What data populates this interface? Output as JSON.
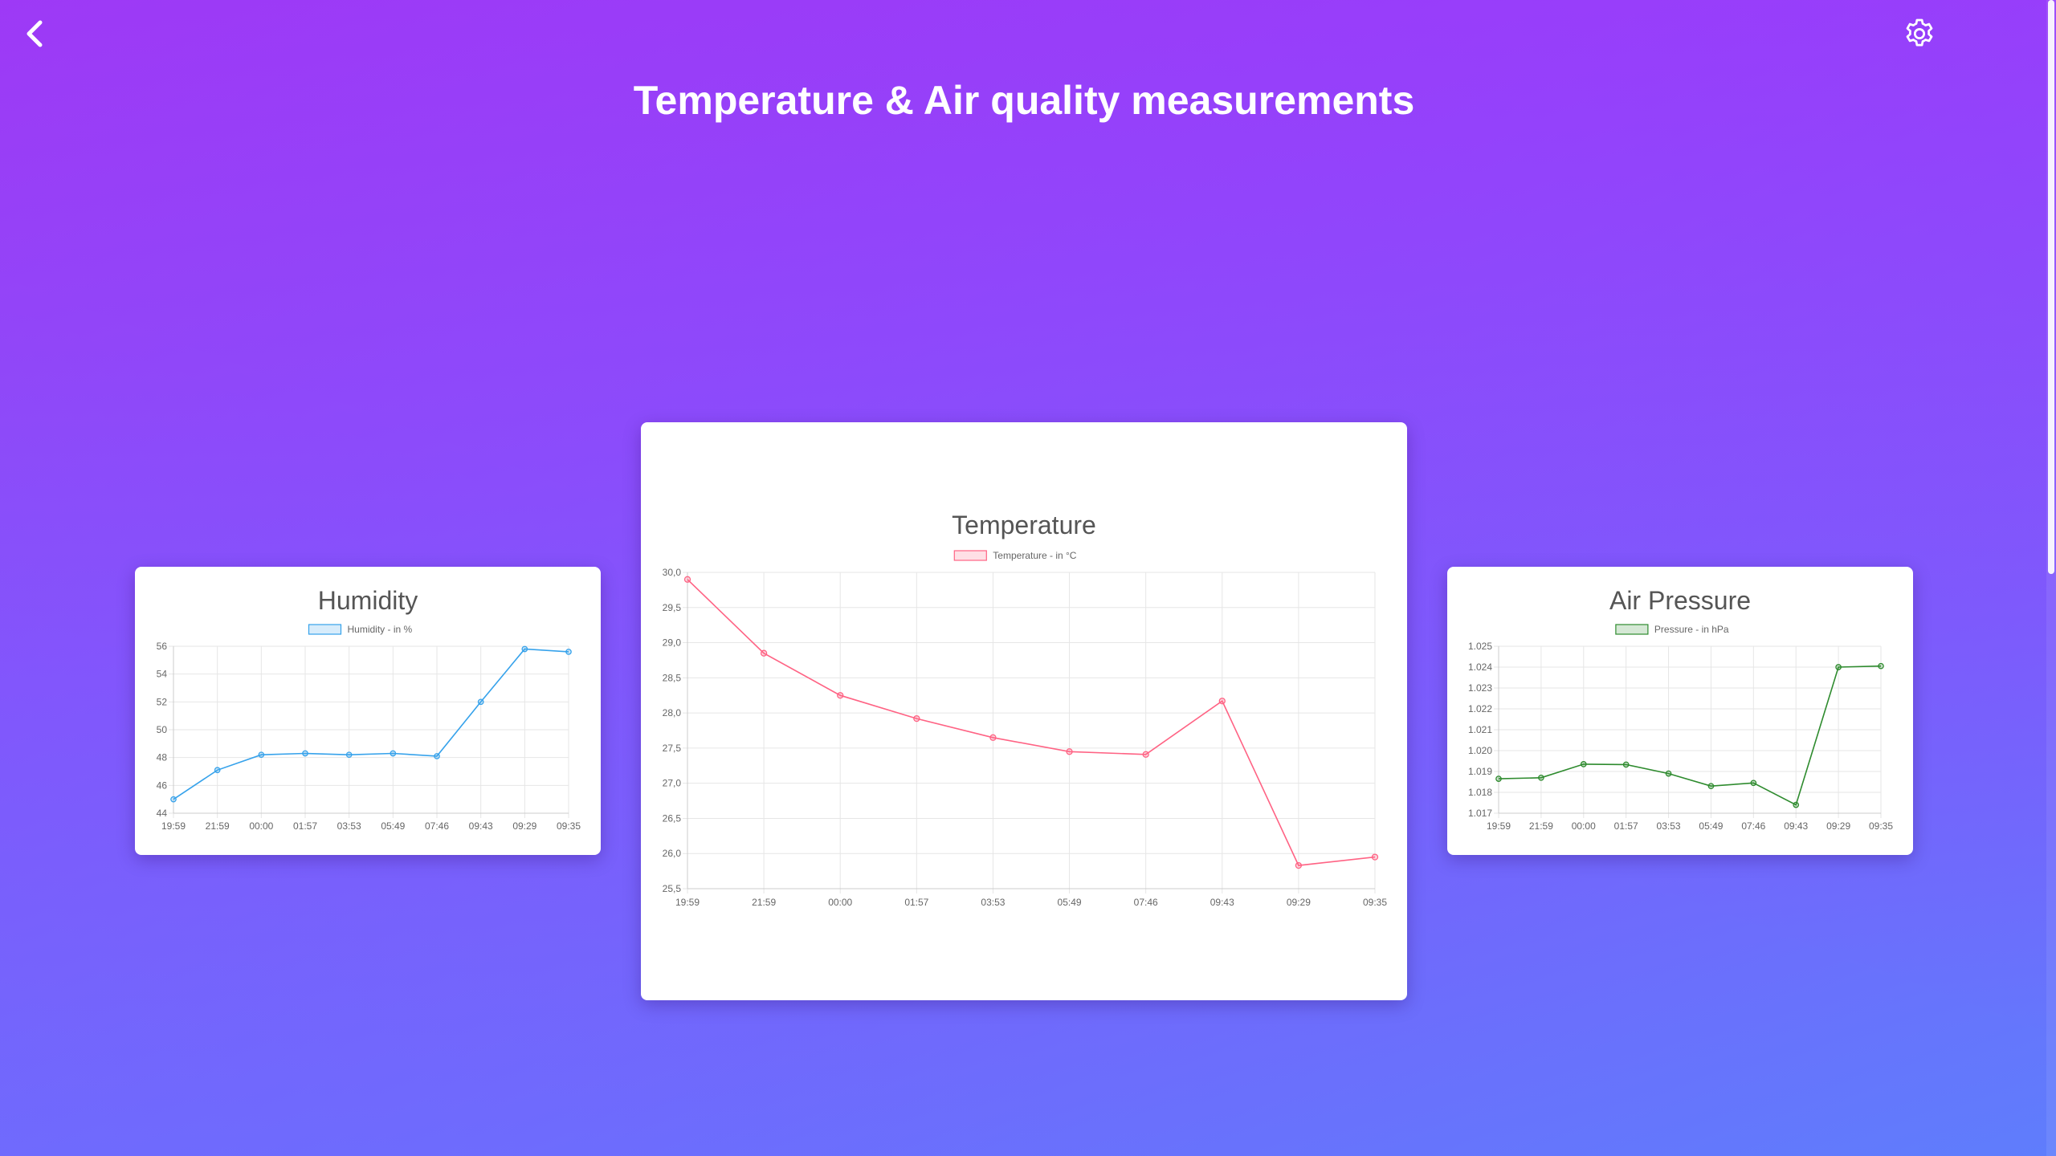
{
  "header": {
    "title": "Temperature & Air quality measurements",
    "back_icon": "chevron-left-icon",
    "settings_icon": "gear-icon"
  },
  "colors": {
    "humidity": "#36a2eb",
    "temperature": "#ff6384",
    "pressure": "#2e8b2e"
  },
  "chart_data": [
    {
      "id": "humidity",
      "type": "line",
      "title": "Humidity",
      "legend": "Humidity - in %",
      "legend_position": "top",
      "grid": true,
      "categories": [
        "19:59",
        "21:59",
        "00:00",
        "01:57",
        "03:53",
        "05:49",
        "07:46",
        "09:43",
        "09:29",
        "09:35"
      ],
      "series": [
        {
          "name": "Humidity - in %",
          "values": [
            45.0,
            47.1,
            48.2,
            48.3,
            48.2,
            48.3,
            48.1,
            52.0,
            55.8,
            55.6
          ]
        }
      ],
      "yticks": [
        "44",
        "46",
        "48",
        "50",
        "52",
        "54",
        "56"
      ],
      "ylim": [
        44,
        56
      ]
    },
    {
      "id": "temperature",
      "type": "line",
      "title": "Temperature",
      "legend": "Temperature - in °C",
      "legend_position": "top",
      "grid": true,
      "categories": [
        "19:59",
        "21:59",
        "00:00",
        "01:57",
        "03:53",
        "05:49",
        "07:46",
        "09:43",
        "09:29",
        "09:35"
      ],
      "series": [
        {
          "name": "Temperature - in °C",
          "values": [
            29.9,
            28.85,
            28.25,
            27.92,
            27.65,
            27.45,
            27.41,
            28.17,
            25.83,
            25.95
          ]
        }
      ],
      "yticks": [
        "25,5",
        "26,0",
        "26,5",
        "27,0",
        "27,5",
        "28,0",
        "28,5",
        "29,0",
        "29,5",
        "30,0"
      ],
      "ylim": [
        25.5,
        30.0
      ]
    },
    {
      "id": "pressure",
      "type": "line",
      "title": "Air Pressure",
      "legend": "Pressure - in hPa",
      "legend_position": "top",
      "grid": true,
      "categories": [
        "19:59",
        "21:59",
        "00:00",
        "01:57",
        "03:53",
        "05:49",
        "07:46",
        "09:43",
        "09:29",
        "09:35"
      ],
      "series": [
        {
          "name": "Pressure - in hPa",
          "values": [
            1018.65,
            1018.7,
            1019.35,
            1019.33,
            1018.9,
            1018.3,
            1018.45,
            1017.4,
            1024.0,
            1024.05
          ]
        }
      ],
      "yticks": [
        "1.017",
        "1.018",
        "1.019",
        "1.020",
        "1.021",
        "1.022",
        "1.023",
        "1.024",
        "1.025"
      ],
      "ylim": [
        1017,
        1025
      ]
    }
  ]
}
